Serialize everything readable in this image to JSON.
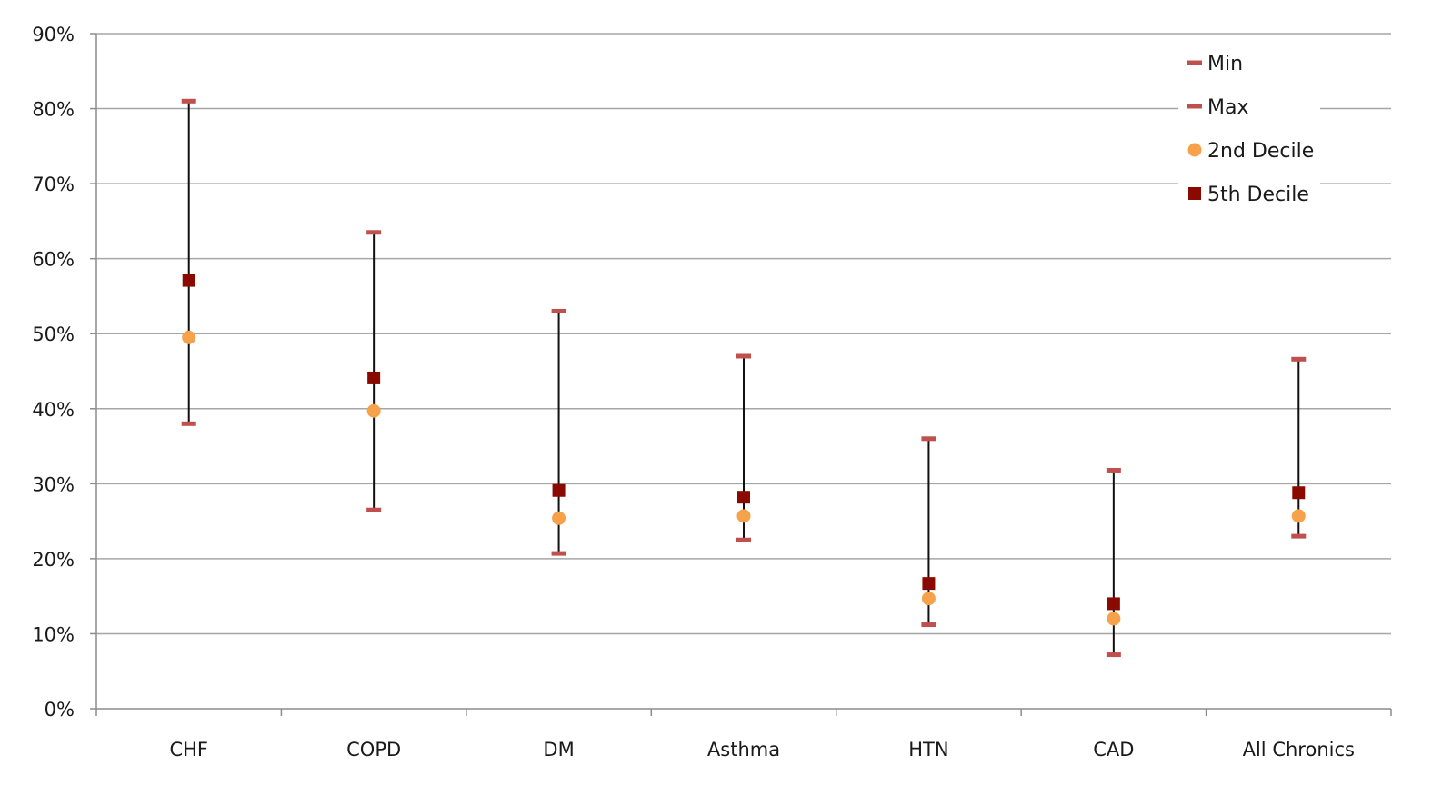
{
  "chart_data": {
    "type": "scatter",
    "title": "",
    "xlabel": "",
    "ylabel": "",
    "ylim": [
      0,
      90
    ],
    "y_ticks": [
      "0%",
      "10%",
      "20%",
      "30%",
      "40%",
      "50%",
      "60%",
      "70%",
      "80%",
      "90%"
    ],
    "y_tick_values": [
      0,
      10,
      20,
      30,
      40,
      50,
      60,
      70,
      80,
      90
    ],
    "grid": true,
    "legend_position": "top-right",
    "categories": [
      "CHF",
      "COPD",
      "DM",
      "Asthma",
      "HTN",
      "CAD",
      "All Chronics"
    ],
    "series": [
      {
        "name": "Min",
        "marker": "dash",
        "color": "#c0504d",
        "values": [
          38,
          26.5,
          20.7,
          22.5,
          11.2,
          7.2,
          23
        ]
      },
      {
        "name": "Max",
        "marker": "dash",
        "color": "#c0504d",
        "values": [
          81,
          63.5,
          53,
          47,
          36,
          31.8,
          46.6
        ]
      },
      {
        "name": "2nd Decile",
        "marker": "circle",
        "color": "#f5a24b",
        "values": [
          49.5,
          39.7,
          25.4,
          25.7,
          14.7,
          12,
          25.7
        ]
      },
      {
        "name": "5th Decile",
        "marker": "square",
        "color": "#8b0a00",
        "values": [
          57.1,
          44.1,
          29.1,
          28.2,
          16.7,
          14,
          28.8
        ]
      }
    ],
    "range_line_color": "#111111"
  }
}
